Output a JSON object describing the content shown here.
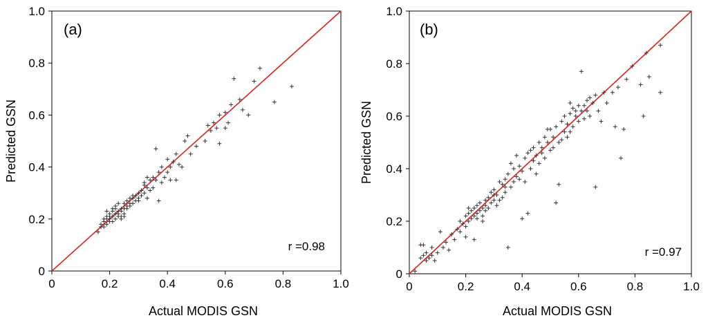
{
  "chart_data": [
    {
      "type": "scatter",
      "panel_label": "(a)",
      "xlabel": "Actual MODIS GSN",
      "ylabel": "Predicted GSN",
      "xlim": [
        0,
        1.0
      ],
      "ylim": [
        0,
        1.0
      ],
      "x_ticks": [
        "0",
        "0.2",
        "0.4",
        "0.6",
        "0.8",
        "1.0"
      ],
      "y_ticks": [
        "0",
        "0.2",
        "0.4",
        "0.6",
        "0.8",
        "1.0"
      ],
      "annotation": "r =0.98",
      "reference_line": {
        "from": [
          0,
          0
        ],
        "to": [
          1,
          1
        ],
        "color": "#e02020"
      },
      "marker_color": "#333333",
      "points": [
        [
          0.16,
          0.15
        ],
        [
          0.17,
          0.17
        ],
        [
          0.17,
          0.18
        ],
        [
          0.18,
          0.17
        ],
        [
          0.18,
          0.19
        ],
        [
          0.18,
          0.2
        ],
        [
          0.19,
          0.18
        ],
        [
          0.19,
          0.2
        ],
        [
          0.19,
          0.21
        ],
        [
          0.2,
          0.19
        ],
        [
          0.2,
          0.2
        ],
        [
          0.2,
          0.21
        ],
        [
          0.2,
          0.22
        ],
        [
          0.21,
          0.19
        ],
        [
          0.21,
          0.21
        ],
        [
          0.21,
          0.23
        ],
        [
          0.22,
          0.2
        ],
        [
          0.22,
          0.22
        ],
        [
          0.22,
          0.24
        ],
        [
          0.23,
          0.21
        ],
        [
          0.23,
          0.22
        ],
        [
          0.23,
          0.23
        ],
        [
          0.24,
          0.21
        ],
        [
          0.24,
          0.23
        ],
        [
          0.24,
          0.24
        ],
        [
          0.25,
          0.22
        ],
        [
          0.25,
          0.24
        ],
        [
          0.25,
          0.26
        ],
        [
          0.26,
          0.24
        ],
        [
          0.26,
          0.25
        ],
        [
          0.26,
          0.27
        ],
        [
          0.27,
          0.25
        ],
        [
          0.27,
          0.26
        ],
        [
          0.27,
          0.28
        ],
        [
          0.28,
          0.26
        ],
        [
          0.28,
          0.28
        ],
        [
          0.29,
          0.27
        ],
        [
          0.29,
          0.29
        ],
        [
          0.3,
          0.28
        ],
        [
          0.3,
          0.3
        ],
        [
          0.31,
          0.29
        ],
        [
          0.31,
          0.31
        ],
        [
          0.32,
          0.3
        ],
        [
          0.32,
          0.33
        ],
        [
          0.33,
          0.28
        ],
        [
          0.33,
          0.32
        ],
        [
          0.34,
          0.35
        ],
        [
          0.34,
          0.31
        ],
        [
          0.35,
          0.36
        ],
        [
          0.35,
          0.32
        ],
        [
          0.36,
          0.35
        ],
        [
          0.36,
          0.47
        ],
        [
          0.37,
          0.27
        ],
        [
          0.37,
          0.38
        ],
        [
          0.38,
          0.34
        ],
        [
          0.38,
          0.4
        ],
        [
          0.39,
          0.36
        ],
        [
          0.4,
          0.43
        ],
        [
          0.41,
          0.35
        ],
        [
          0.41,
          0.4
        ],
        [
          0.42,
          0.42
        ],
        [
          0.43,
          0.45
        ],
        [
          0.43,
          0.35
        ],
        [
          0.44,
          0.41
        ],
        [
          0.45,
          0.4
        ],
        [
          0.46,
          0.5
        ],
        [
          0.47,
          0.52
        ],
        [
          0.48,
          0.45
        ],
        [
          0.5,
          0.48
        ],
        [
          0.53,
          0.5
        ],
        [
          0.54,
          0.56
        ],
        [
          0.55,
          0.54
        ],
        [
          0.56,
          0.57
        ],
        [
          0.57,
          0.55
        ],
        [
          0.58,
          0.49
        ],
        [
          0.58,
          0.6
        ],
        [
          0.6,
          0.55
        ],
        [
          0.61,
          0.57
        ],
        [
          0.62,
          0.64
        ],
        [
          0.63,
          0.74
        ],
        [
          0.65,
          0.66
        ],
        [
          0.66,
          0.62
        ],
        [
          0.68,
          0.6
        ],
        [
          0.7,
          0.73
        ],
        [
          0.72,
          0.78
        ],
        [
          0.77,
          0.65
        ],
        [
          0.83,
          0.71
        ],
        [
          0.22,
          0.25
        ],
        [
          0.24,
          0.2
        ],
        [
          0.21,
          0.24
        ],
        [
          0.19,
          0.23
        ],
        [
          0.23,
          0.26
        ],
        [
          0.28,
          0.29
        ],
        [
          0.3,
          0.27
        ],
        [
          0.32,
          0.34
        ],
        [
          0.25,
          0.21
        ],
        [
          0.33,
          0.36
        ],
        [
          0.4,
          0.38
        ],
        [
          0.6,
          0.61
        ]
      ]
    },
    {
      "type": "scatter",
      "panel_label": "(b)",
      "xlabel": "Actual MODIS GSN",
      "ylabel": "Predicted GSN",
      "xlim": [
        0,
        1.0
      ],
      "ylim": [
        0,
        1.0
      ],
      "x_ticks": [
        "0",
        "0.2",
        "0.4",
        "0.6",
        "0.8",
        "1.0"
      ],
      "y_ticks": [
        "0",
        "0.2",
        "0.4",
        "0.6",
        "0.8",
        "1.0"
      ],
      "annotation": "r =0.97",
      "reference_line": {
        "from": [
          0,
          0
        ],
        "to": [
          1,
          1
        ],
        "color": "#e02020"
      },
      "marker_color": "#333333",
      "points": [
        [
          0.02,
          0.01
        ],
        [
          0.04,
          0.06
        ],
        [
          0.04,
          0.11
        ],
        [
          0.05,
          0.07
        ],
        [
          0.05,
          0.11
        ],
        [
          0.06,
          0.05
        ],
        [
          0.06,
          0.08
        ],
        [
          0.07,
          0.06
        ],
        [
          0.08,
          0.07
        ],
        [
          0.08,
          0.1
        ],
        [
          0.09,
          0.05
        ],
        [
          0.1,
          0.08
        ],
        [
          0.11,
          0.16
        ],
        [
          0.12,
          0.1
        ],
        [
          0.13,
          0.12
        ],
        [
          0.14,
          0.09
        ],
        [
          0.15,
          0.15
        ],
        [
          0.16,
          0.13
        ],
        [
          0.17,
          0.17
        ],
        [
          0.18,
          0.16
        ],
        [
          0.19,
          0.19
        ],
        [
          0.2,
          0.18
        ],
        [
          0.2,
          0.22
        ],
        [
          0.21,
          0.2
        ],
        [
          0.21,
          0.23
        ],
        [
          0.22,
          0.21
        ],
        [
          0.22,
          0.24
        ],
        [
          0.23,
          0.22
        ],
        [
          0.23,
          0.25
        ],
        [
          0.24,
          0.23
        ],
        [
          0.24,
          0.26
        ],
        [
          0.25,
          0.24
        ],
        [
          0.25,
          0.27
        ],
        [
          0.26,
          0.25
        ],
        [
          0.26,
          0.22
        ],
        [
          0.27,
          0.28
        ],
        [
          0.27,
          0.26
        ],
        [
          0.28,
          0.29
        ],
        [
          0.28,
          0.25
        ],
        [
          0.29,
          0.27
        ],
        [
          0.3,
          0.32
        ],
        [
          0.3,
          0.28
        ],
        [
          0.31,
          0.3
        ],
        [
          0.32,
          0.35
        ],
        [
          0.32,
          0.28
        ],
        [
          0.33,
          0.34
        ],
        [
          0.34,
          0.31
        ],
        [
          0.34,
          0.36
        ],
        [
          0.35,
          0.1
        ],
        [
          0.35,
          0.38
        ],
        [
          0.36,
          0.33
        ],
        [
          0.37,
          0.4
        ],
        [
          0.37,
          0.35
        ],
        [
          0.38,
          0.45
        ],
        [
          0.38,
          0.37
        ],
        [
          0.39,
          0.41
        ],
        [
          0.4,
          0.21
        ],
        [
          0.4,
          0.39
        ],
        [
          0.41,
          0.44
        ],
        [
          0.41,
          0.35
        ],
        [
          0.42,
          0.23
        ],
        [
          0.42,
          0.46
        ],
        [
          0.43,
          0.4
        ],
        [
          0.44,
          0.48
        ],
        [
          0.44,
          0.43
        ],
        [
          0.45,
          0.45
        ],
        [
          0.46,
          0.5
        ],
        [
          0.46,
          0.42
        ],
        [
          0.47,
          0.48
        ],
        [
          0.48,
          0.52
        ],
        [
          0.48,
          0.44
        ],
        [
          0.49,
          0.5
        ],
        [
          0.5,
          0.55
        ],
        [
          0.5,
          0.47
        ],
        [
          0.51,
          0.52
        ],
        [
          0.52,
          0.27
        ],
        [
          0.52,
          0.56
        ],
        [
          0.53,
          0.34
        ],
        [
          0.53,
          0.5
        ],
        [
          0.54,
          0.58
        ],
        [
          0.55,
          0.54
        ],
        [
          0.55,
          0.6
        ],
        [
          0.56,
          0.57
        ],
        [
          0.56,
          0.52
        ],
        [
          0.57,
          0.61
        ],
        [
          0.58,
          0.56
        ],
        [
          0.58,
          0.63
        ],
        [
          0.59,
          0.6
        ],
        [
          0.6,
          0.58
        ],
        [
          0.6,
          0.64
        ],
        [
          0.61,
          0.62
        ],
        [
          0.61,
          0.77
        ],
        [
          0.62,
          0.59
        ],
        [
          0.63,
          0.66
        ],
        [
          0.63,
          0.62
        ],
        [
          0.64,
          0.6
        ],
        [
          0.65,
          0.65
        ],
        [
          0.66,
          0.33
        ],
        [
          0.66,
          0.68
        ],
        [
          0.67,
          0.62
        ],
        [
          0.68,
          0.58
        ],
        [
          0.69,
          0.69
        ],
        [
          0.7,
          0.65
        ],
        [
          0.72,
          0.69
        ],
        [
          0.73,
          0.56
        ],
        [
          0.74,
          0.71
        ],
        [
          0.75,
          0.44
        ],
        [
          0.76,
          0.55
        ],
        [
          0.77,
          0.74
        ],
        [
          0.79,
          0.79
        ],
        [
          0.82,
          0.72
        ],
        [
          0.83,
          0.6
        ],
        [
          0.84,
          0.84
        ],
        [
          0.85,
          0.75
        ],
        [
          0.89,
          0.87
        ],
        [
          0.89,
          0.69
        ],
        [
          0.2,
          0.14
        ],
        [
          0.18,
          0.2
        ],
        [
          0.23,
          0.13
        ],
        [
          0.26,
          0.2
        ],
        [
          0.29,
          0.31
        ],
        [
          0.31,
          0.26
        ],
        [
          0.33,
          0.29
        ],
        [
          0.36,
          0.42
        ],
        [
          0.39,
          0.36
        ],
        [
          0.43,
          0.47
        ],
        [
          0.47,
          0.46
        ],
        [
          0.51,
          0.48
        ],
        [
          0.54,
          0.51
        ],
        [
          0.57,
          0.54
        ],
        [
          0.59,
          0.62
        ],
        [
          0.62,
          0.64
        ],
        [
          0.64,
          0.67
        ],
        [
          0.57,
          0.65
        ],
        [
          0.49,
          0.55
        ],
        [
          0.45,
          0.38
        ],
        [
          0.21,
          0.25
        ],
        [
          0.24,
          0.21
        ],
        [
          0.27,
          0.24
        ],
        [
          0.3,
          0.3
        ],
        [
          0.34,
          0.33
        ]
      ]
    }
  ]
}
